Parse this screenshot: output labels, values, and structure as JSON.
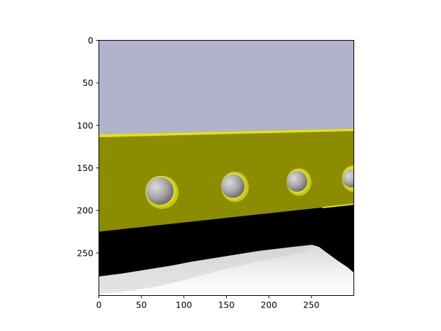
{
  "figure": {
    "background_color": "#ffffff"
  },
  "axes": {
    "x_ticks": [
      {
        "value": 0,
        "label": "0"
      },
      {
        "value": 50,
        "label": "50"
      },
      {
        "value": 100,
        "label": "100"
      },
      {
        "value": 150,
        "label": "150"
      },
      {
        "value": 200,
        "label": "200"
      },
      {
        "value": 250,
        "label": "250"
      }
    ],
    "y_ticks": [
      {
        "value": 0,
        "label": "0"
      },
      {
        "value": 50,
        "label": "50"
      },
      {
        "value": 100,
        "label": "100"
      },
      {
        "value": 150,
        "label": "150"
      },
      {
        "value": 200,
        "label": "200"
      },
      {
        "value": 250,
        "label": "250"
      }
    ],
    "x_range": [
      0,
      300
    ],
    "y_range": [
      0,
      300
    ],
    "y_inverted": true,
    "grid": false
  },
  "scene": {
    "sky_color": "#b2b2cc",
    "wall_color": "#8c8c00",
    "wall_highlight_color": "#e6e600",
    "floor_shadow_color": "#000000",
    "floor_color": "#f2f2f2",
    "sphere_color": "#a8a8a8",
    "objects": [
      {
        "name": "sphere-1",
        "description": "grey sphere in wall recess"
      },
      {
        "name": "sphere-2",
        "description": "grey sphere in wall recess"
      },
      {
        "name": "sphere-3",
        "description": "grey sphere in wall recess"
      },
      {
        "name": "sphere-4",
        "description": "grey sphere partially cut off at right edge"
      }
    ]
  }
}
